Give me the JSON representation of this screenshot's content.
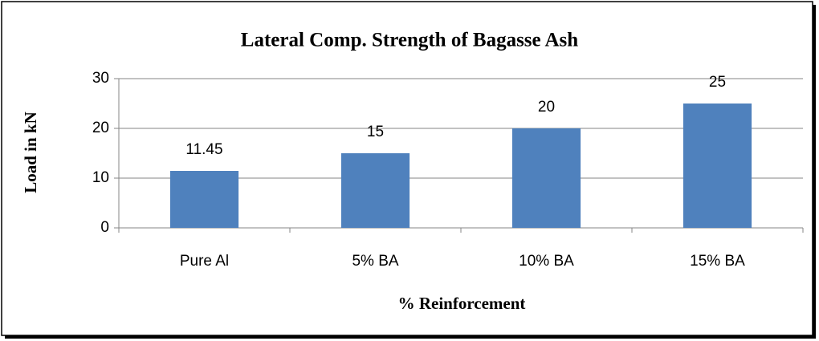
{
  "chart_data": {
    "type": "bar",
    "title": "Lateral Comp. Strength of Bagasse Ash",
    "x_label": "% Reinforcement",
    "y_label": "Load in kN",
    "categories": [
      "Pure Al",
      "5% BA",
      "10% BA",
      "15% BA"
    ],
    "values": [
      11.45,
      15,
      20,
      25
    ],
    "color": "#4f81bd",
    "ylim": [
      0,
      30
    ],
    "yticks": [
      0,
      10,
      20,
      30
    ],
    "grid": true
  }
}
